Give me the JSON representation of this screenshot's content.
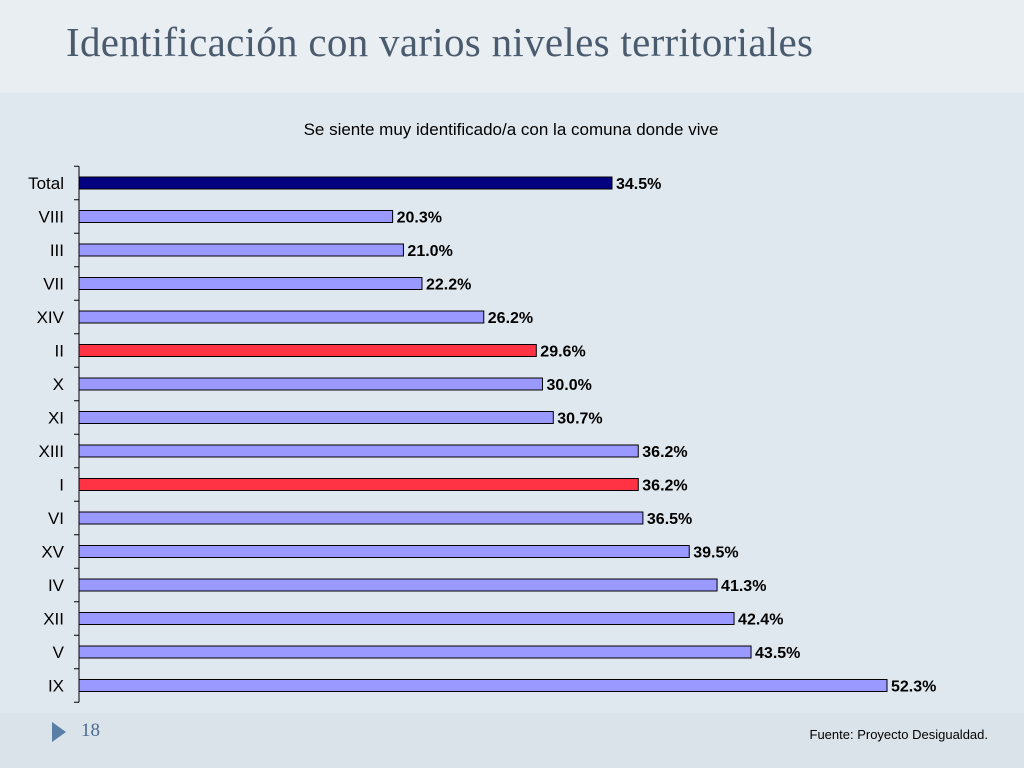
{
  "slide": {
    "title": "Identificación con varios niveles territoriales",
    "page_number": "18",
    "source": "Fuente: Proyecto Desigualdad."
  },
  "colors": {
    "total": "#000080",
    "default": "#9999ff",
    "highlight": "#ff3344"
  },
  "chart_data": {
    "type": "bar",
    "orientation": "horizontal",
    "title": "Se siente muy identificado/a con la comuna donde vive",
    "categories": [
      "Total",
      "VIII",
      "III",
      "VII",
      "XIV",
      "II",
      "X",
      "XI",
      "XIII",
      "I",
      "VI",
      "XV",
      "IV",
      "XII",
      "V",
      "IX"
    ],
    "values": [
      34.5,
      20.3,
      21.0,
      22.2,
      26.2,
      29.6,
      30.0,
      30.7,
      36.2,
      36.2,
      36.5,
      39.5,
      41.3,
      42.4,
      43.5,
      52.3
    ],
    "value_labels": [
      "34.5%",
      "20.3%",
      "21.0%",
      "22.2%",
      "26.2%",
      "29.6%",
      "30.0%",
      "30.7%",
      "36.2%",
      "36.2%",
      "36.5%",
      "39.5%",
      "41.3%",
      "42.4%",
      "43.5%",
      "52.3%"
    ],
    "bar_colors": [
      "total",
      "default",
      "default",
      "default",
      "default",
      "highlight",
      "default",
      "default",
      "default",
      "highlight",
      "default",
      "default",
      "default",
      "default",
      "default",
      "default"
    ],
    "xlim": [
      0,
      52.3
    ],
    "grid": false,
    "legend": "none"
  }
}
